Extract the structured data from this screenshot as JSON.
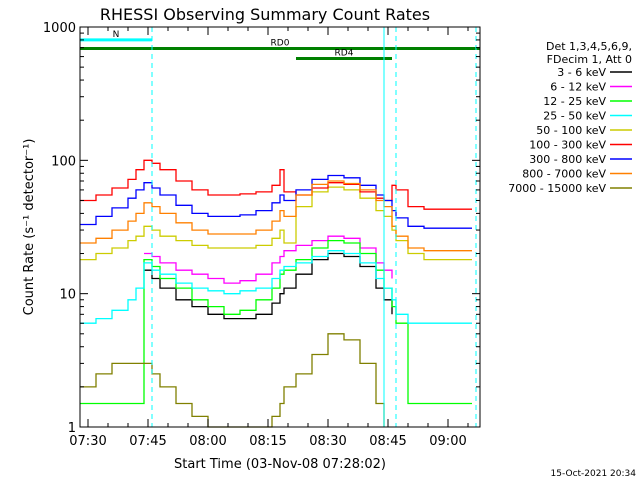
{
  "chart_data": {
    "type": "line",
    "title": "RHESSI Observing Summary Count Rates",
    "xlabel": "Start Time (03-Nov-08 07:28:02)",
    "ylabel": "Count Rate (s⁻¹ detector⁻¹)",
    "y_scale": "log",
    "ylim": [
      1,
      1000
    ],
    "xlim": [
      "07:28",
      "09:08"
    ],
    "x_ticks": [
      "07:30",
      "07:45",
      "08:00",
      "08:15",
      "08:30",
      "08:45",
      "09:00"
    ],
    "y_ticks": [
      "1",
      "10",
      "100",
      "1000"
    ],
    "timestamp": "15-Oct-2021 20:34",
    "legend_header": [
      "Det 1,3,4,5,6,9,",
      "FDecim 1, Att 0"
    ],
    "legend_position": "right",
    "annotations": [
      {
        "label": "N",
        "from": "07:28",
        "to": "07:46",
        "color": "#00ffff",
        "level": 800
      },
      {
        "label": "RD0",
        "from": "07:28",
        "to": "09:08",
        "color": "#008000",
        "level": 690
      },
      {
        "label": "RD4",
        "from": "08:22",
        "to": "08:46",
        "color": "#008000",
        "level": 580
      }
    ],
    "vertical_lines": [
      {
        "time": "07:46",
        "color": "#00ffff",
        "style": "dashed"
      },
      {
        "time": "08:44",
        "color": "#00ffff",
        "style": "solid"
      },
      {
        "time": "08:47",
        "color": "#00ffff",
        "style": "dashed"
      },
      {
        "time": "09:07",
        "color": "#00ffff",
        "style": "dashed"
      }
    ],
    "x": [
      "07:28",
      "07:32",
      "07:36",
      "07:40",
      "07:42",
      "07:44",
      "07:46",
      "07:48",
      "07:52",
      "07:56",
      "08:00",
      "08:04",
      "08:08",
      "08:12",
      "08:16",
      "08:18",
      "08:19",
      "08:22",
      "08:26",
      "08:30",
      "08:34",
      "08:38",
      "08:42",
      "08:44",
      "08:46",
      "08:47",
      "08:50",
      "08:54",
      "08:58",
      "09:02",
      "09:06"
    ],
    "series": [
      {
        "name": "3 - 6 keV",
        "color": "#000000",
        "values": [
          null,
          null,
          null,
          null,
          null,
          15,
          13,
          11,
          9,
          8,
          7,
          6.5,
          6.5,
          7,
          8.5,
          10,
          11,
          14,
          18,
          20,
          19,
          16,
          11,
          9,
          7,
          null,
          null,
          null,
          null,
          null,
          null
        ]
      },
      {
        "name": "6 - 12 keV",
        "color": "#ff00ff",
        "values": [
          null,
          null,
          null,
          null,
          null,
          20,
          19,
          17,
          15,
          14,
          13,
          12,
          12.5,
          14,
          17,
          19,
          21,
          23,
          25,
          27,
          26,
          22,
          17,
          15,
          13,
          null,
          null,
          null,
          null,
          null,
          null
        ]
      },
      {
        "name": "12 - 25 keV",
        "color": "#00ff00",
        "values": [
          1.5,
          1.5,
          1.5,
          1.5,
          1.5,
          18,
          16,
          13,
          11,
          9,
          8,
          7,
          7.5,
          9,
          11,
          14,
          15,
          18,
          22,
          25,
          24,
          20,
          15,
          11,
          8,
          6,
          1.5,
          1.5,
          1.5,
          1.5,
          1.5
        ]
      },
      {
        "name": "25 - 50 keV",
        "color": "#00ffff",
        "values": [
          6,
          6.5,
          7.5,
          9,
          11,
          17,
          15,
          14,
          12,
          11,
          10.5,
          10,
          10.5,
          11,
          13,
          15,
          16,
          17,
          19,
          21,
          20,
          17,
          13,
          11,
          9,
          7,
          6,
          6,
          6,
          6,
          6
        ]
      },
      {
        "name": "50 - 100 keV",
        "color": "#cccc00",
        "values": [
          18,
          20,
          22,
          25,
          27,
          32,
          30,
          27,
          25,
          23,
          22,
          22,
          22,
          23,
          26,
          30,
          24,
          45,
          58,
          63,
          60,
          52,
          42,
          38,
          30,
          25,
          20,
          18,
          18,
          18,
          18
        ]
      },
      {
        "name": "100 - 300 keV",
        "color": "#ff0000",
        "values": [
          50,
          55,
          62,
          72,
          85,
          100,
          95,
          85,
          70,
          60,
          55,
          55,
          56,
          58,
          65,
          85,
          58,
          55,
          62,
          68,
          66,
          58,
          52,
          50,
          65,
          60,
          45,
          43,
          43,
          43,
          43
        ]
      },
      {
        "name": "300 - 800 keV",
        "color": "#0000ff",
        "values": [
          33,
          38,
          44,
          52,
          60,
          68,
          62,
          55,
          46,
          40,
          38,
          38,
          39,
          42,
          48,
          55,
          50,
          60,
          72,
          77,
          74,
          65,
          55,
          50,
          42,
          37,
          32,
          31,
          31,
          31,
          31
        ]
      },
      {
        "name": "800 - 7000 keV",
        "color": "#ff8000",
        "values": [
          24,
          26,
          30,
          35,
          40,
          48,
          45,
          40,
          34,
          30,
          28,
          28,
          28,
          30,
          35,
          42,
          38,
          55,
          66,
          70,
          67,
          60,
          50,
          45,
          32,
          27,
          22,
          21,
          21,
          21,
          21
        ]
      },
      {
        "name": "7000 - 15000 keV",
        "color": "#808000",
        "values": [
          2,
          2.5,
          3,
          3,
          3,
          3,
          2.5,
          2,
          1.5,
          1.2,
          1,
          1,
          1,
          1,
          1.2,
          1.5,
          2,
          2.5,
          3.5,
          5,
          4.5,
          3,
          1.5,
          1,
          null,
          null,
          null,
          null,
          null,
          null,
          null
        ]
      }
    ]
  }
}
